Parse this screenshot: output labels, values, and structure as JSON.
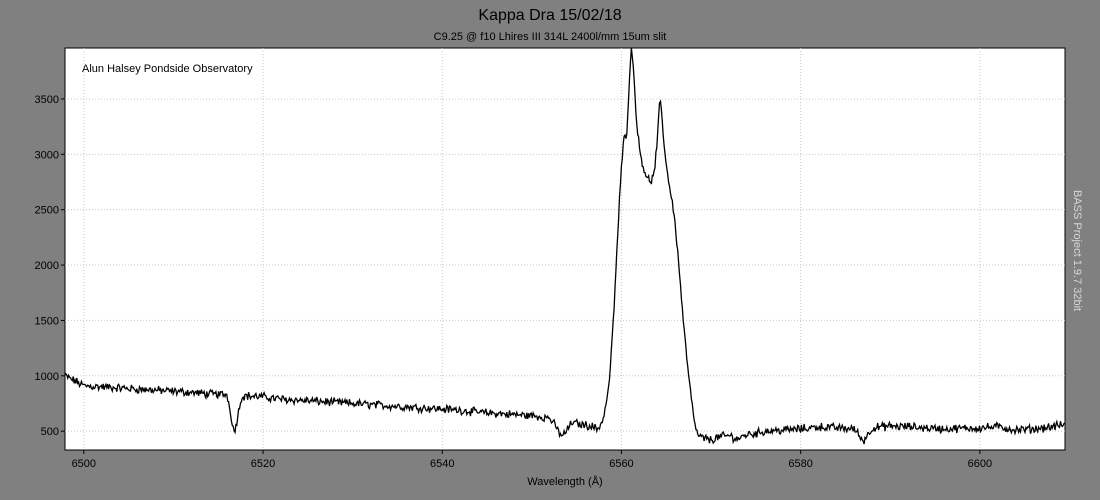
{
  "chart_data": {
    "type": "line",
    "title": "Kappa Dra   15/02/18",
    "subtitle": "C9.25 @ f10  Lhires III 314L  2400l/mm  15um slit",
    "xlabel": "Wavelength (Å)",
    "ylabel": "",
    "annotation": "Alun Halsey  Pondside Observatory",
    "watermark": "BASS Project 1.9.7  32bit",
    "xlim": [
      6497.9,
      6609.5
    ],
    "ylim": [
      330,
      3960
    ],
    "x_ticks": [
      6500,
      6520,
      6540,
      6560,
      6580,
      6600
    ],
    "y_ticks": [
      500,
      1000,
      1500,
      2000,
      2500,
      3000,
      3500
    ],
    "grid": true,
    "colors": {
      "line": "#000000",
      "plot_background": "#ffffff",
      "frame_background": "#808080",
      "grid": "#c8c8c8"
    },
    "series": [
      {
        "x": [
          6497.9,
          6500,
          6502,
          6504,
          6506,
          6508,
          6510,
          6512,
          6514,
          6516,
          6516.8,
          6517.6,
          6518,
          6520,
          6521,
          6522,
          6524,
          6526,
          6528,
          6530,
          6532,
          6534,
          6536,
          6538,
          6540,
          6542,
          6544,
          6546,
          6548,
          6550,
          6552,
          6553.4,
          6554.5,
          6555.5,
          6556.5,
          6557.4,
          6558.0,
          6558.6,
          6559.1,
          6559.6,
          6560.0,
          6560.3,
          6560.6,
          6560.9,
          6561.1,
          6561.3,
          6561.6,
          6562.0,
          6562.4,
          6562.8,
          6563.2,
          6563.6,
          6564.0,
          6564.2,
          6564.4,
          6564.7,
          6565.0,
          6565.4,
          6565.8,
          6566.2,
          6566.6,
          6567.0,
          6567.5,
          6568.0,
          6568.5,
          6569.0,
          6569.5,
          6570,
          6571,
          6572,
          6573,
          6574,
          6575,
          6576,
          6578,
          6580,
          6582,
          6584,
          6586,
          6587,
          6588,
          6590,
          6592,
          6594,
          6596,
          6598,
          6600,
          6602,
          6604,
          6606,
          6608,
          6609.5
        ],
        "values": [
          1000,
          910,
          900,
          890,
          880,
          870,
          860,
          850,
          835,
          830,
          480,
          810,
          820,
          810,
          800,
          790,
          780,
          770,
          760,
          750,
          740,
          730,
          720,
          710,
          700,
          690,
          670,
          660,
          650,
          640,
          620,
          450,
          580,
          560,
          550,
          520,
          620,
          900,
          1500,
          2300,
          2900,
          3150,
          3200,
          3700,
          3950,
          3850,
          3400,
          3050,
          2900,
          2800,
          2750,
          2800,
          3100,
          3420,
          3450,
          3150,
          2900,
          2700,
          2500,
          2200,
          1800,
          1400,
          1000,
          650,
          460,
          440,
          430,
          420,
          450,
          460,
          430,
          470,
          480,
          500,
          510,
          520,
          540,
          530,
          520,
          410,
          530,
          545,
          540,
          530,
          520,
          525,
          530,
          540,
          510,
          520,
          540,
          560
        ]
      }
    ]
  }
}
